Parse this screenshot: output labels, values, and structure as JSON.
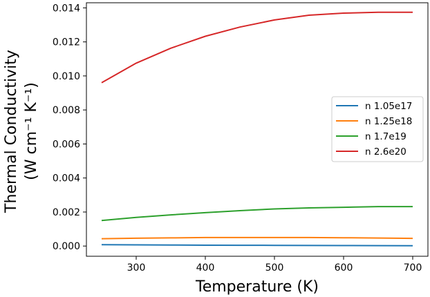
{
  "chart_data": {
    "type": "line",
    "xlabel": "Temperature (K)",
    "ylabel_line1": "Thermal Conductivity",
    "ylabel_line2": "(W cm⁻¹ K⁻¹)",
    "xlim": [
      228,
      722
    ],
    "ylim": [
      -0.0006,
      0.0143
    ],
    "xticks": [
      300,
      400,
      500,
      600,
      700
    ],
    "yticks": [
      0.0,
      0.002,
      0.004,
      0.006,
      0.008,
      0.01,
      0.012,
      0.014
    ],
    "ytick_labels": [
      "0.000",
      "0.002",
      "0.004",
      "0.006",
      "0.008",
      "0.010",
      "0.012",
      "0.014"
    ],
    "xtick_labels": [
      "300",
      "400",
      "500",
      "600",
      "700"
    ],
    "grid": false,
    "legend_position": "center-right",
    "x": [
      250,
      300,
      350,
      400,
      450,
      500,
      550,
      600,
      650,
      700
    ],
    "series": [
      {
        "name": "n 1.05e17",
        "color": "#1f77b4",
        "values": [
          8e-05,
          7e-05,
          6e-05,
          5e-05,
          4.5e-05,
          4e-05,
          3.5e-05,
          3e-05,
          2.5e-05,
          2e-05
        ]
      },
      {
        "name": "n 1.25e18",
        "color": "#ff7f0e",
        "values": [
          0.00043,
          0.00046,
          0.00048,
          0.0005,
          0.0005,
          0.0005,
          0.0005,
          0.00049,
          0.00047,
          0.00045
        ]
      },
      {
        "name": "n 1.7e19",
        "color": "#2ca02c",
        "values": [
          0.0015,
          0.00168,
          0.00183,
          0.00196,
          0.00208,
          0.00218,
          0.00224,
          0.00228,
          0.00232,
          0.00232
        ]
      },
      {
        "name": "n 2.6e20",
        "color": "#d62728",
        "values": [
          0.0096,
          0.01075,
          0.01163,
          0.01233,
          0.01287,
          0.01329,
          0.01357,
          0.01369,
          0.01374,
          0.01374
        ]
      }
    ]
  }
}
